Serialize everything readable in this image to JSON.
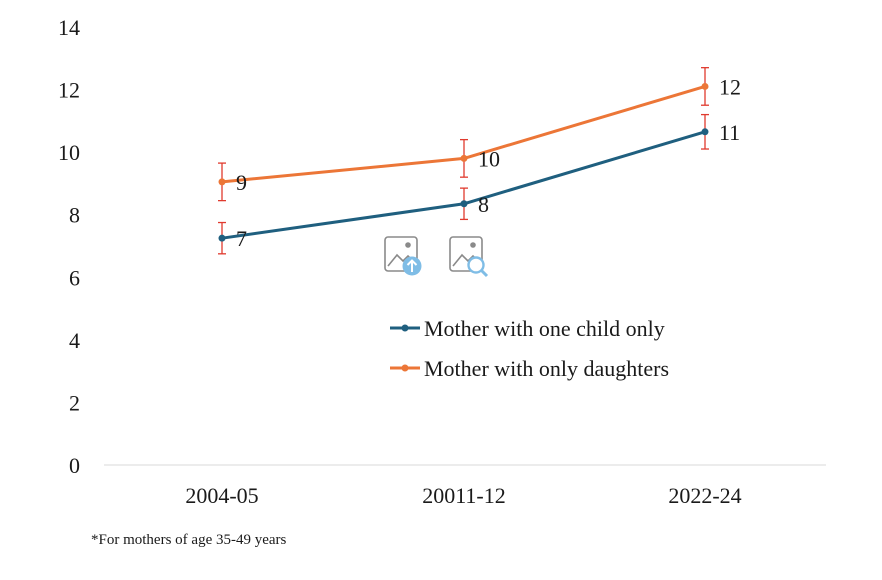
{
  "chart_data": {
    "type": "line",
    "categories": [
      "2004-05",
      "20011-12",
      "2022-24"
    ],
    "ylim": [
      0,
      14
    ],
    "yticks": [
      0,
      2,
      4,
      6,
      8,
      10,
      12,
      14
    ],
    "grid": false,
    "legend_position": "center-right",
    "series": [
      {
        "name": "Mother with one child only",
        "color": "#1f5f7f",
        "values": [
          7.25,
          8.35,
          10.65
        ],
        "data_labels": [
          "7",
          "8",
          "11"
        ],
        "error": [
          0.5,
          0.5,
          0.55
        ]
      },
      {
        "name": "Mother with only daughters",
        "color": "#ec7637",
        "values": [
          9.05,
          9.8,
          12.1
        ],
        "data_labels": [
          "9",
          "10",
          "12"
        ],
        "error": [
          0.6,
          0.6,
          0.6
        ]
      }
    ],
    "error_bar_color": "#e03a2e"
  },
  "footnote": "*For mothers of age 35-49 years",
  "icons": [
    "image-upload-icon",
    "image-search-icon"
  ]
}
